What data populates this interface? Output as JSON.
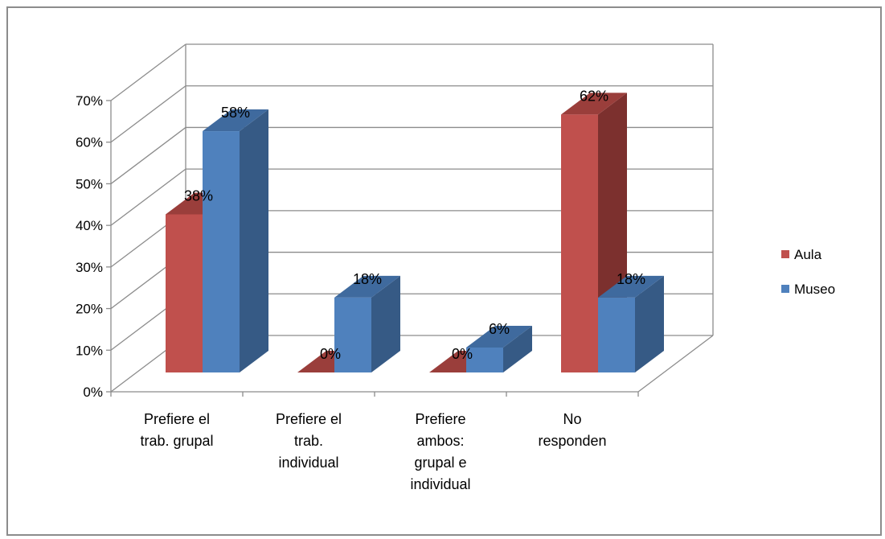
{
  "chart_data": {
    "type": "bar",
    "title": "",
    "xlabel": "",
    "ylabel": "",
    "ylim": [
      0,
      70
    ],
    "yticks": [
      0,
      10,
      20,
      30,
      40,
      50,
      60,
      70
    ],
    "ytick_labels": [
      "0%",
      "10%",
      "20%",
      "30%",
      "40%",
      "50%",
      "60%",
      "70%"
    ],
    "y_unit": "%",
    "grid": true,
    "legend_position": "right",
    "categories": [
      "Prefiere el trab. grupal",
      "Prefiere el trab. individual",
      "Prefiere ambos: grupal e individual",
      "No responden"
    ],
    "category_lines": [
      [
        "Prefiere el",
        "trab. grupal"
      ],
      [
        "Prefiere el",
        "trab.",
        "individual"
      ],
      [
        "Prefiere",
        "ambos:",
        "grupal e",
        "individual"
      ],
      [
        "No",
        "responden"
      ]
    ],
    "series": [
      {
        "name": "Aula",
        "values": [
          38,
          0,
          0,
          62
        ],
        "labels": [
          "38%",
          "0%",
          "0%",
          "62%"
        ],
        "color": "#c0504d",
        "color_side": "#7c302e",
        "color_top": "#9a3e3b"
      },
      {
        "name": "Museo",
        "values": [
          58,
          18,
          6,
          18
        ],
        "labels": [
          "58%",
          "18%",
          "6%",
          "18%"
        ],
        "color": "#4f81bd",
        "color_side": "#365a85",
        "color_top": "#3f6a9e"
      }
    ]
  }
}
